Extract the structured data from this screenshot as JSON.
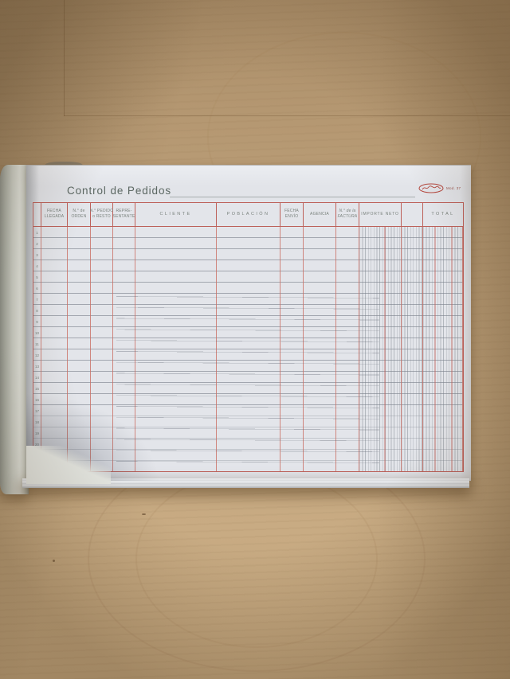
{
  "page": {
    "title": "Control de Pedidos",
    "model_label": "Mod. 37"
  },
  "table": {
    "columns": [
      {
        "id": "row-number",
        "lines": []
      },
      {
        "id": "fecha-llegada",
        "lines": [
          "FECHA",
          "LLEGADA"
        ]
      },
      {
        "id": "numero-orden",
        "lines": [
          "N.° de",
          "ORDEN"
        ]
      },
      {
        "id": "numero-pedido",
        "lines": [
          "N.° PEDIDO",
          "o RESTO"
        ]
      },
      {
        "id": "representante",
        "lines": [
          "REPRE-",
          "SENTANTE"
        ]
      },
      {
        "id": "cliente",
        "lines": [
          "CLIENTE"
        ]
      },
      {
        "id": "poblacion",
        "lines": [
          "POBLACIÓN"
        ]
      },
      {
        "id": "fecha-envio",
        "lines": [
          "FECHA",
          "ENVÍO"
        ]
      },
      {
        "id": "agencia",
        "lines": [
          "AGENCIA"
        ]
      },
      {
        "id": "numero-factura",
        "lines": [
          "N.° de la",
          "FACTURA"
        ]
      },
      {
        "id": "importe-neto",
        "lines": [
          "IMPORTE NETO"
        ]
      },
      {
        "id": "sin-titulo",
        "lines": []
      },
      {
        "id": "total",
        "lines": [
          "TOTAL"
        ]
      }
    ],
    "row_numbers": [
      "1",
      "2",
      "3",
      "4",
      "5",
      "6",
      "7",
      "8",
      "9",
      "10",
      "11",
      "12",
      "13",
      "14",
      "15",
      "16",
      "17",
      "18",
      "19",
      "20",
      "21",
      "22"
    ],
    "cells": []
  },
  "colors": {
    "rule_red": "#bb5a52",
    "line_gray": "#6c7380",
    "paper": "#e2e4e9",
    "wood": "#bfa27b",
    "logo_red": "#b5483f",
    "title_text": "#5c6863"
  }
}
